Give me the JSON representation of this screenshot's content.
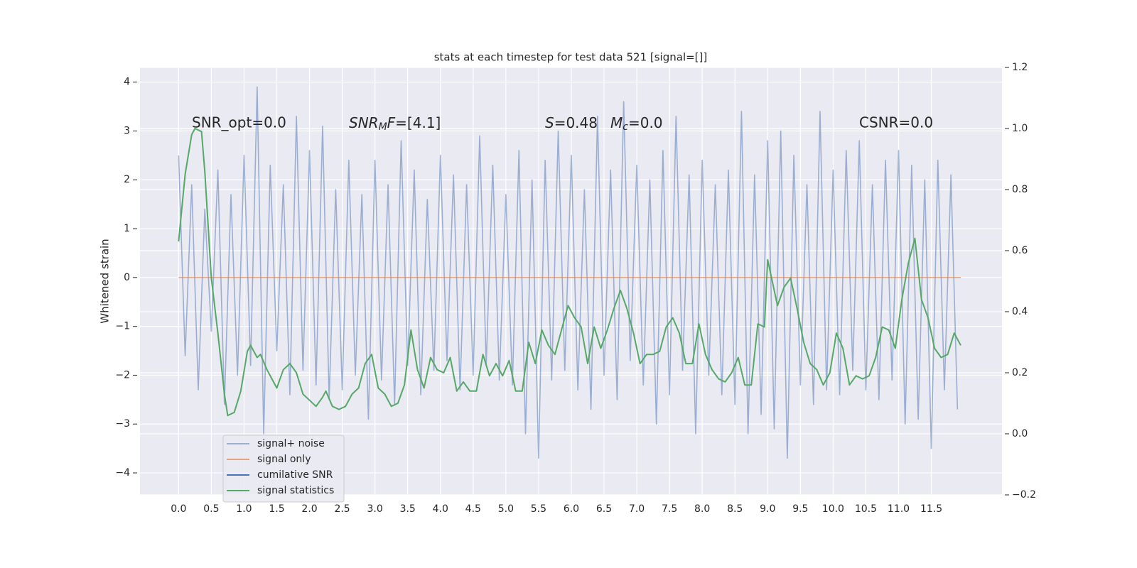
{
  "chart_data": {
    "type": "line",
    "title": "stats at each timestep for test data 521 [signal=[]]",
    "ylabel": "Whitened strain",
    "xlim": [
      -0.59,
      12.58
    ],
    "ylim": [
      -4.45,
      4.3
    ],
    "y2lim": [
      -0.2,
      1.2
    ],
    "grid": true,
    "legend": "lower left",
    "xticks": [
      {
        "value": 0,
        "label": "0.0"
      },
      0.5,
      {
        "value": 1,
        "label": "1.0"
      },
      1.5,
      {
        "value": 2,
        "label": "2.0"
      },
      2.5,
      {
        "value": 3,
        "label": "3.0"
      },
      3.5,
      {
        "value": 4,
        "label": "4.0"
      },
      4.5,
      {
        "value": 5,
        "label": "5.0"
      },
      5.5,
      {
        "value": 6,
        "label": "6.0"
      },
      6.5,
      {
        "value": 7,
        "label": "7.0"
      },
      7.5,
      {
        "value": 8,
        "label": "8.0"
      },
      8.5,
      {
        "value": 9,
        "label": "9.0"
      },
      9.5,
      {
        "value": 10,
        "label": "10.0"
      },
      10.5,
      {
        "value": 11,
        "label": "11.0"
      },
      11.5
    ],
    "yticks": [
      {
        "value": -4,
        "label": "−4"
      },
      {
        "value": -3,
        "label": "−3"
      },
      {
        "value": -2,
        "label": "−2"
      },
      {
        "value": -1,
        "label": "−1"
      },
      0,
      1,
      2,
      3,
      4
    ],
    "y2ticks": [
      {
        "value": -0.2,
        "label": "−0.2"
      },
      {
        "value": 0,
        "label": "0.0"
      },
      0.2,
      0.4,
      0.6,
      0.8,
      {
        "value": 1,
        "label": "1.0"
      },
      1.2
    ],
    "annotations": [
      {
        "text": "SNR_opt=0.0"
      },
      {
        "base": "SNR",
        "sub": "M",
        "tail": "F",
        "rest": "=[4.1]"
      },
      {
        "base": "S",
        "rest": "=0.48"
      },
      {
        "base": "M",
        "sub": "c",
        "rest": "=0.0"
      },
      {
        "text": "CSNR=0.0"
      }
    ],
    "series": [
      {
        "name": "signal+ noise",
        "color": "#4c72b0",
        "opacity": 0.5,
        "x": [
          0,
          0.1,
          0.2,
          0.3,
          0.4,
          0.5,
          0.6,
          0.7,
          0.8,
          0.9,
          1,
          1.1,
          1.2,
          1.3,
          1.4,
          1.5,
          1.6,
          1.7,
          1.8,
          1.9,
          2,
          2.1,
          2.2,
          2.3,
          2.4,
          2.5,
          2.6,
          2.7,
          2.8,
          2.9,
          3,
          3.1,
          3.2,
          3.3,
          3.4,
          3.5,
          3.6,
          3.7,
          3.8,
          3.9,
          4,
          4.1,
          4.2,
          4.3,
          4.4,
          4.5,
          4.6,
          4.7,
          4.8,
          4.9,
          5,
          5.1,
          5.2,
          5.3,
          5.4,
          5.5,
          5.6,
          5.7,
          5.8,
          5.9,
          6,
          6.1,
          6.2,
          6.3,
          6.4,
          6.5,
          6.6,
          6.7,
          6.8,
          6.9,
          7,
          7.1,
          7.2,
          7.3,
          7.4,
          7.5,
          7.6,
          7.7,
          7.8,
          7.9,
          8,
          8.1,
          8.2,
          8.3,
          8.4,
          8.5,
          8.6,
          8.7,
          8.8,
          8.9,
          9,
          9.1,
          9.2,
          9.3,
          9.4,
          9.5,
          9.6,
          9.7,
          9.8,
          9.9,
          10,
          10.1,
          10.2,
          10.3,
          10.4,
          10.5,
          10.6,
          10.7,
          10.8,
          10.9,
          11,
          11.1,
          11.2,
          11.3,
          11.4,
          11.5,
          11.6,
          11.7,
          11.8,
          11.9
        ],
        "values": [
          2.5,
          -1.6,
          1.9,
          -2.3,
          1.4,
          -1.1,
          2.2,
          -2.6,
          1.7,
          -2.0,
          2.5,
          -1.8,
          3.9,
          -3.2,
          2.3,
          -1.5,
          1.9,
          -2.4,
          3.3,
          -1.9,
          2.6,
          -2.2,
          3.1,
          -2.5,
          1.8,
          -2.3,
          2.4,
          -2.0,
          1.7,
          -2.9,
          2.4,
          -2.1,
          1.9,
          -2.6,
          2.8,
          -1.8,
          2.2,
          -2.4,
          1.6,
          -1.9,
          2.5,
          -1.7,
          2.1,
          -2.3,
          1.9,
          -2.0,
          2.9,
          -1.8,
          2.3,
          -2.1,
          1.7,
          -2.2,
          2.6,
          -3.2,
          2.0,
          -3.7,
          2.4,
          -2.1,
          3.0,
          -1.9,
          2.5,
          -2.3,
          1.8,
          -2.7,
          3.3,
          -2.0,
          2.2,
          -2.5,
          3.6,
          -1.7,
          2.3,
          -2.2,
          2.0,
          -3.0,
          2.6,
          -2.4,
          3.3,
          -1.9,
          2.1,
          -3.2,
          2.4,
          -2.0,
          1.9,
          -2.4,
          2.2,
          -2.6,
          3.4,
          -3.2,
          2.1,
          -2.8,
          2.8,
          -3.1,
          3.0,
          -3.7,
          2.5,
          -2.2,
          1.9,
          -2.6,
          3.4,
          -2.3,
          2.2,
          -2.4,
          2.6,
          -1.9,
          2.8,
          -2.3,
          1.9,
          -2.5,
          2.4,
          -2.1,
          2.6,
          -3.0,
          2.3,
          -2.9,
          2.0,
          -3.5,
          2.4,
          -2.3,
          2.1,
          -2.7
        ]
      },
      {
        "name": "signal only",
        "color": "#dd8452",
        "opacity": 0.7,
        "x": [
          0,
          11.95
        ],
        "values": [
          0,
          0
        ]
      },
      {
        "name": "cumilative SNR",
        "color": "#4c72b0",
        "opacity": 1,
        "x": [],
        "values": []
      },
      {
        "name": "signal statistics",
        "color": "#55a868",
        "opacity": 1,
        "axis": "y2",
        "x": [
          0,
          0.1,
          0.2,
          0.25,
          0.35,
          0.4,
          0.5,
          0.6,
          0.7,
          0.75,
          0.85,
          0.95,
          1.05,
          1.1,
          1.2,
          1.25,
          1.35,
          1.45,
          1.5,
          1.6,
          1.7,
          1.8,
          1.9,
          2,
          2.1,
          2.2,
          2.25,
          2.35,
          2.45,
          2.55,
          2.65,
          2.75,
          2.85,
          2.95,
          3.05,
          3.15,
          3.25,
          3.35,
          3.45,
          3.55,
          3.65,
          3.75,
          3.85,
          3.95,
          4.05,
          4.15,
          4.25,
          4.35,
          4.45,
          4.55,
          4.65,
          4.75,
          4.85,
          4.95,
          5.05,
          5.15,
          5.25,
          5.35,
          5.45,
          5.55,
          5.65,
          5.75,
          5.85,
          5.95,
          6.05,
          6.15,
          6.25,
          6.35,
          6.45,
          6.55,
          6.65,
          6.75,
          6.85,
          6.95,
          7.05,
          7.15,
          7.25,
          7.35,
          7.45,
          7.55,
          7.65,
          7.75,
          7.85,
          7.95,
          8.05,
          8.15,
          8.25,
          8.35,
          8.45,
          8.55,
          8.65,
          8.75,
          8.85,
          8.95,
          9.0,
          9.15,
          9.25,
          9.35,
          9.45,
          9.55,
          9.65,
          9.75,
          9.85,
          9.95,
          10.05,
          10.15,
          10.25,
          10.35,
          10.45,
          10.55,
          10.65,
          10.75,
          10.85,
          10.95,
          11.05,
          11.15,
          11.25,
          11.35,
          11.45,
          11.55,
          11.65,
          11.75,
          11.85,
          11.95
        ],
        "values": [
          0.63,
          0.85,
          0.98,
          1.0,
          0.99,
          0.86,
          0.51,
          0.33,
          0.13,
          0.06,
          0.07,
          0.14,
          0.27,
          0.29,
          0.25,
          0.26,
          0.21,
          0.17,
          0.15,
          0.21,
          0.23,
          0.2,
          0.13,
          0.11,
          0.09,
          0.12,
          0.14,
          0.09,
          0.08,
          0.09,
          0.13,
          0.15,
          0.23,
          0.26,
          0.15,
          0.13,
          0.09,
          0.1,
          0.16,
          0.34,
          0.21,
          0.15,
          0.25,
          0.21,
          0.2,
          0.25,
          0.14,
          0.17,
          0.14,
          0.14,
          0.26,
          0.19,
          0.23,
          0.19,
          0.24,
          0.14,
          0.14,
          0.3,
          0.23,
          0.34,
          0.29,
          0.26,
          0.34,
          0.42,
          0.38,
          0.35,
          0.23,
          0.35,
          0.28,
          0.34,
          0.41,
          0.47,
          0.41,
          0.33,
          0.23,
          0.26,
          0.26,
          0.27,
          0.35,
          0.38,
          0.33,
          0.23,
          0.23,
          0.36,
          0.26,
          0.21,
          0.18,
          0.17,
          0.2,
          0.25,
          0.16,
          0.16,
          0.36,
          0.35,
          0.57,
          0.42,
          0.48,
          0.51,
          0.41,
          0.3,
          0.23,
          0.21,
          0.16,
          0.2,
          0.33,
          0.28,
          0.16,
          0.19,
          0.18,
          0.19,
          0.25,
          0.35,
          0.34,
          0.28,
          0.44,
          0.56,
          0.64,
          0.44,
          0.38,
          0.28,
          0.25,
          0.26,
          0.33,
          0.29
        ]
      }
    ]
  }
}
